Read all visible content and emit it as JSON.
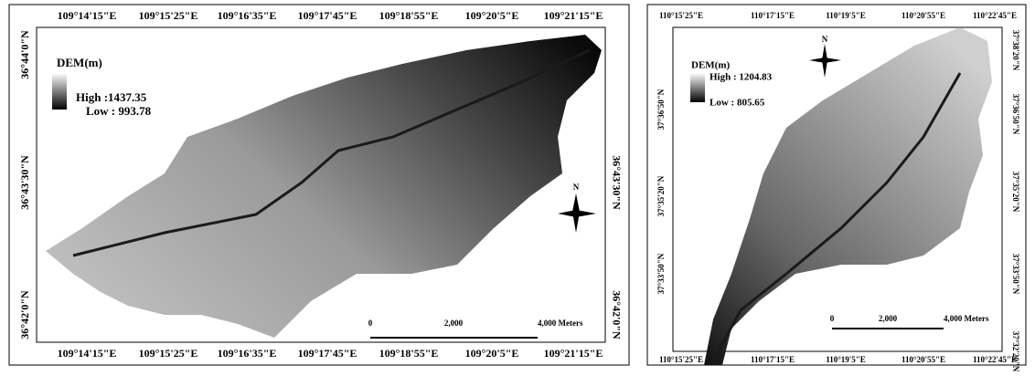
{
  "panels": [
    {
      "top_labels": [
        "109°14'15\"E",
        "109°15'25\"E",
        "109°16'35\"E",
        "109°17'45\"E",
        "109°18'55\"E",
        "109°20'5\"E",
        "109°21'15\"E"
      ],
      "bottom_labels": [
        "109°14'15\"E",
        "109°15'25\"E",
        "109°16'35\"E",
        "109°17'45\"E",
        "109°18'55\"E",
        "109°20'5\"E",
        "109°21'15\"E"
      ],
      "left_labels": [
        "36°44'0\"N",
        "36°43'30\"N",
        "36°42'0\"N"
      ],
      "right_labels": [
        "36°43'30\"N",
        "36°42'0\"N"
      ],
      "legend": {
        "title": "DEM(m)",
        "high": "High :1437.35",
        "low": "Low : 993.78"
      },
      "scale": {
        "labels": [
          "0",
          "2,000",
          "4,000 Meters"
        ]
      },
      "north": "N"
    },
    {
      "top_labels": [
        "110°15'25\"E",
        "110°17'15\"E",
        "110°19'5\"E",
        "110°20'55\"E",
        "110°22'45\"E"
      ],
      "bottom_labels": [
        "110°15'25\"E",
        "110°17'15\"E",
        "110°19'5\"E",
        "110°20'55\"E",
        "110°22'45\"E"
      ],
      "left_labels": [
        "37°36'50\"N",
        "37°35'20\"N",
        "37°33'50\"N"
      ],
      "right_labels": [
        "37°38'20\"N",
        "37°36'50\"N",
        "37°35'20\"N",
        "37°33'50\"N",
        "37°32'20\"N"
      ],
      "legend": {
        "title": "DEM(m)",
        "high": "High : 1204.83",
        "low": "Low : 805.65"
      },
      "scale": {
        "labels": [
          "0",
          "2,000",
          "4,000 Meters"
        ]
      },
      "north": "N"
    }
  ]
}
